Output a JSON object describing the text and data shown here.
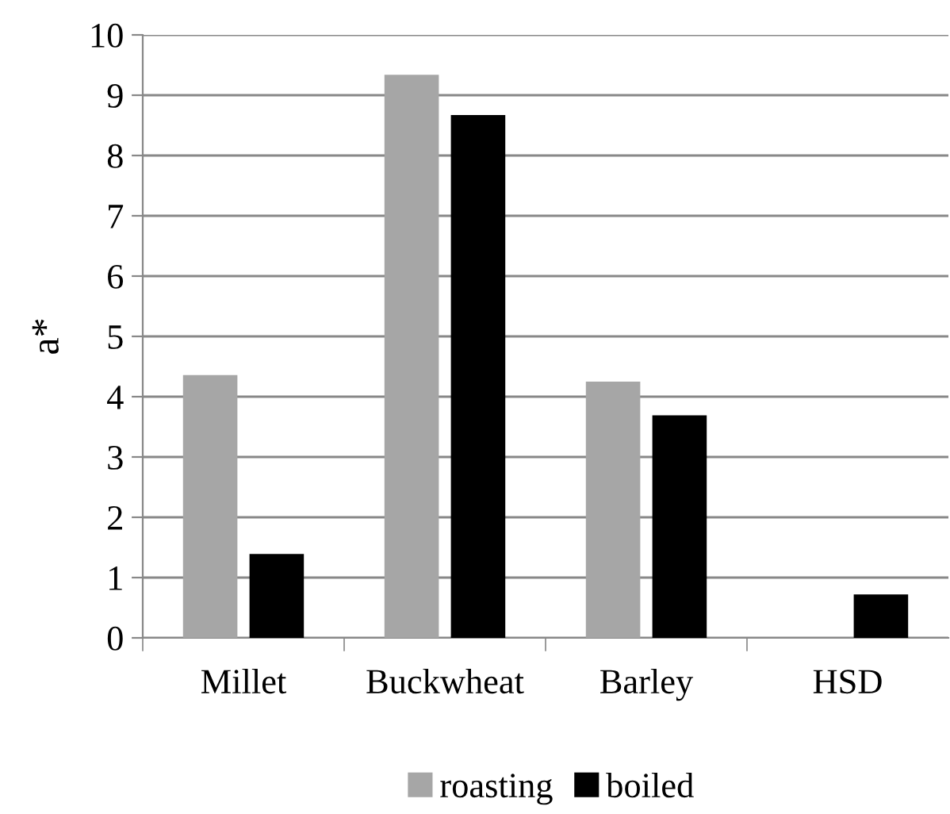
{
  "chart_data": {
    "type": "bar",
    "ylabel": "a*",
    "categories": [
      "Millet",
      "Buckwheat",
      "Barley",
      "HSD"
    ],
    "series": [
      {
        "name": "roasting",
        "color": "#a6a6a6",
        "values": [
          4.36,
          9.34,
          4.25,
          null
        ]
      },
      {
        "name": "boiled",
        "color": "#000000",
        "values": [
          1.39,
          8.67,
          3.69,
          0.72
        ]
      }
    ],
    "ylim": [
      0,
      10
    ],
    "yticks": [
      0,
      1,
      2,
      3,
      4,
      5,
      6,
      7,
      8,
      9,
      10
    ],
    "grid": "y",
    "legend": "bottom"
  }
}
